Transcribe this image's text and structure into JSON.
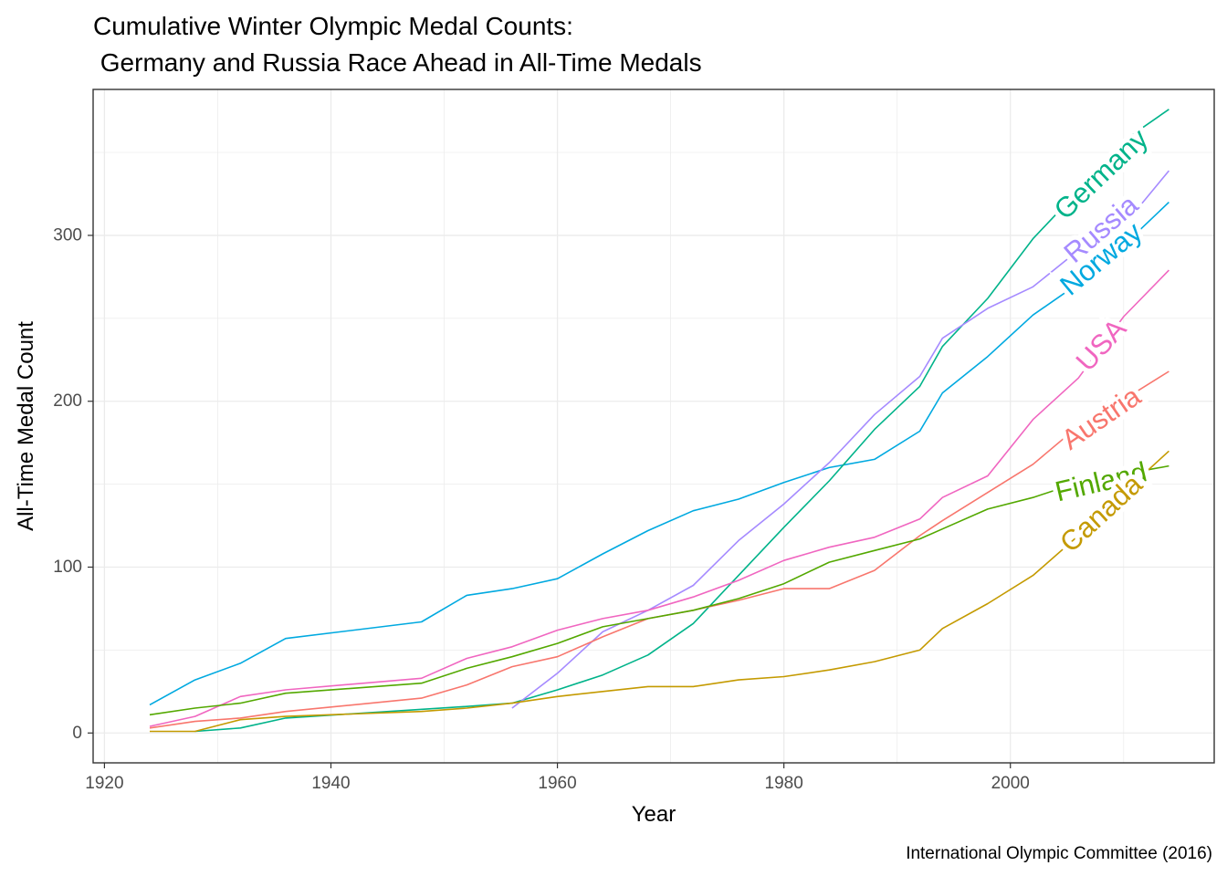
{
  "chart_data": {
    "type": "line",
    "title": "Cumulative Winter Olympic Medal Counts:",
    "subtitle": " Germany and Russia Race Ahead in All-Time Medals",
    "xlabel": "Year",
    "ylabel": "All-Time Medal Count",
    "caption": "International Olympic Committee (2016)",
    "xlim": [
      1919,
      2018
    ],
    "ylim": [
      -18,
      388
    ],
    "x_ticks": [
      1920,
      1940,
      1960,
      1980,
      2000
    ],
    "y_ticks": [
      0,
      100,
      200,
      300
    ],
    "grid": true,
    "legend": "direct labels",
    "series": [
      {
        "name": "Norway",
        "color": "#00A9E0",
        "x": [
          1924,
          1928,
          1932,
          1936,
          1948,
          1952,
          1956,
          1960,
          1964,
          1968,
          1972,
          1976,
          1980,
          1984,
          1988,
          1992,
          1994,
          1998,
          2002,
          2006,
          2010,
          2014
        ],
        "y": [
          17,
          32,
          42,
          57,
          67,
          83,
          87,
          93,
          108,
          122,
          134,
          141,
          151,
          160,
          165,
          182,
          205,
          227,
          252,
          271,
          294,
          320
        ]
      },
      {
        "name": "Germany",
        "color": "#00B38A",
        "x": [
          1928,
          1932,
          1936,
          1952,
          1956,
          1960,
          1964,
          1968,
          1972,
          1976,
          1980,
          1984,
          1988,
          1992,
          1994,
          1998,
          2002,
          2006,
          2010,
          2014
        ],
        "y": [
          1,
          3,
          9,
          16,
          18,
          26,
          35,
          47,
          66,
          95,
          124,
          152,
          183,
          209,
          233,
          262,
          298,
          327,
          357,
          376
        ]
      },
      {
        "name": "Russia",
        "color": "#A58AFF",
        "x": [
          1956,
          1960,
          1964,
          1968,
          1972,
          1976,
          1980,
          1984,
          1988,
          1992,
          1994,
          1998,
          2002,
          2006,
          2010,
          2014
        ],
        "y": [
          15,
          36,
          61,
          74,
          89,
          116,
          138,
          163,
          192,
          215,
          238,
          256,
          269,
          291,
          306,
          339
        ]
      },
      {
        "name": "USA",
        "color": "#F066C0",
        "x": [
          1924,
          1928,
          1932,
          1936,
          1948,
          1952,
          1956,
          1960,
          1964,
          1968,
          1972,
          1976,
          1980,
          1984,
          1988,
          1992,
          1994,
          1998,
          2002,
          2006,
          2010,
          2014
        ],
        "y": [
          4,
          10,
          22,
          26,
          33,
          45,
          52,
          62,
          69,
          74,
          82,
          92,
          104,
          112,
          118,
          129,
          142,
          155,
          189,
          214,
          251,
          279
        ]
      },
      {
        "name": "Austria",
        "color": "#F8766D",
        "x": [
          1924,
          1928,
          1932,
          1936,
          1948,
          1952,
          1956,
          1960,
          1964,
          1968,
          1972,
          1976,
          1980,
          1984,
          1988,
          1992,
          1994,
          1998,
          2002,
          2006,
          2010,
          2014
        ],
        "y": [
          3,
          7,
          9,
          13,
          21,
          29,
          40,
          46,
          58,
          69,
          74,
          80,
          87,
          87,
          98,
          119,
          128,
          145,
          162,
          185,
          201,
          218
        ]
      },
      {
        "name": "Finland",
        "color": "#53A800",
        "x": [
          1924,
          1928,
          1932,
          1936,
          1948,
          1952,
          1956,
          1960,
          1964,
          1968,
          1972,
          1976,
          1980,
          1984,
          1988,
          1992,
          1994,
          1998,
          2002,
          2006,
          2010,
          2014
        ],
        "y": [
          11,
          15,
          18,
          24,
          30,
          39,
          46,
          54,
          64,
          69,
          74,
          81,
          90,
          103,
          110,
          117,
          123,
          135,
          142,
          151,
          156,
          161
        ]
      },
      {
        "name": "Canada",
        "color": "#C49A00",
        "x": [
          1924,
          1928,
          1932,
          1936,
          1948,
          1952,
          1956,
          1960,
          1964,
          1968,
          1972,
          1976,
          1980,
          1984,
          1988,
          1992,
          1994,
          1998,
          2002,
          2006,
          2010,
          2014
        ],
        "y": [
          1,
          1,
          8,
          10,
          13,
          15,
          18,
          22,
          25,
          28,
          28,
          32,
          34,
          38,
          43,
          50,
          63,
          78,
          95,
          119,
          145,
          170
        ]
      }
    ]
  }
}
